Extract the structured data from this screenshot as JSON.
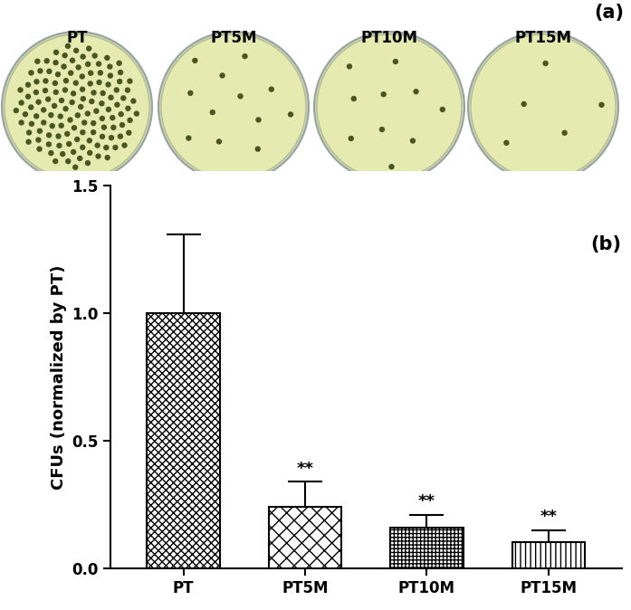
{
  "panel_a": {
    "label": "(a)",
    "plates": [
      "PT",
      "PT5M",
      "PT10M",
      "PT15M"
    ],
    "colony_counts": [
      130,
      12,
      10,
      5
    ]
  },
  "chart_data": {
    "type": "bar",
    "label": "(b)",
    "y_label": "CFUs (normalized by PT)",
    "categories": [
      "PT",
      "PT5M",
      "PT10M",
      "PT15M"
    ],
    "values": [
      1.0,
      0.24,
      0.16,
      0.105
    ],
    "errors": [
      0.31,
      0.1,
      0.05,
      0.045
    ],
    "color": "#ffffff",
    "ylim": [
      0,
      1.5
    ],
    "yticks": [
      {
        "value": 0,
        "label": "0.0"
      },
      {
        "value": 0.5,
        "label": "0.5"
      },
      {
        "value": 1.0,
        "label": "1.0"
      },
      {
        "value": 1.5,
        "label": "1.5"
      }
    ],
    "annotations": [
      {
        "category": "PT5M",
        "text": "**"
      },
      {
        "category": "PT10M",
        "text": "**"
      },
      {
        "category": "PT15M",
        "text": "**"
      }
    ],
    "grid": false
  }
}
